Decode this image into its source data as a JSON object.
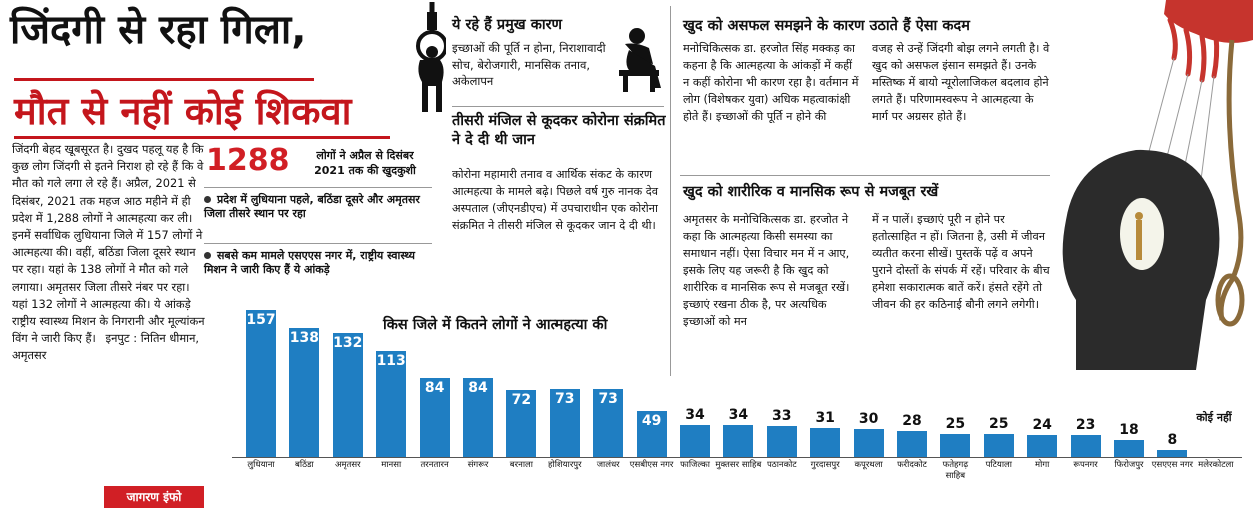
{
  "headline": {
    "line1": "जिंदगी से रहा गिला,",
    "line2": "मौत से नहीं कोई शिकवा"
  },
  "intro": "जिंदगी बेहद खूबसूरत है। दुखद पहलू यह है कि कुछ लोग जिंदगी से इतने निराश हो रहे हैं कि वे मौत को गले लगा ले रहे हैं। अप्रैल, 2021 से दिसंबर, 2021 तक महज आठ महीने में ही प्रदेश में 1,288 लोगों ने आत्महत्या कर ली। इनमें सर्वाधिक लुधियाना जिले में 157 लोगों ने आत्महत्या की। वहीं, बठिंडा जिला दूसरे स्थान पर रहा। यहां के 138 लोगों ने मौत को गले लगाया। अमृतसर जिला तीसरे नंबर पर रहा। यहां 132 लोगों ने आत्महत्या की। ये आंकड़े राष्ट्रीय स्वास्थ्य मिशन के निगरानी और मूल्यांकन विंग ने जारी किए हैं।",
  "input_credit": "इनपुट : नितिन धीमान, अमृतसर",
  "stat": {
    "number": "1288",
    "note": "लोगों ने अप्रैल से दिसंबर 2021 तक की खुदकुशी"
  },
  "bullets": [
    "प्रदेश में लुधियाना पहले, बठिंडा दूसरे और अमृतसर जिला तीसरे स्थान पर रहा",
    "सबसे कम मामले एसएएस नगर में, राष्ट्रीय स्वास्थ्य मिशन ने जारी किए हैं ये आंकड़े"
  ],
  "reasons": {
    "title": "ये रहे हैं प्रमुख कारण",
    "text": "इच्छाओं की पूर्ति न होना, निराशावादी सोच, बेरोजगारी, मानसिक तनाव, अकेलापन"
  },
  "third_floor": {
    "title": "तीसरी मंजिल से कूदकर कोरोना संक्रमित ने दे दी थी जान",
    "text": "कोरोना महामारी तनाव व आर्थिक संकट के कारण आत्महत्या के मामले बढ़े। पिछले वर्ष गुरु नानक देव अस्पताल (जीएनडीएच) में उपचाराधीन एक कोरोना संक्रमित ने तीसरी मंजिल से कूदकर जान दे दी थी।"
  },
  "failure": {
    "title": "खुद को असफल समझने के कारण उठाते हैं ऐसा कदम",
    "col1": "मनोचिकित्सक डा. हरजोत सिंह मक्कड़ का कहना है कि आत्महत्या के आंकड़ों में कहीं न कहीं कोरोना भी कारण रहा है। वर्तमान में लोग (विशेषकर युवा) अधिक महत्वाकांक्षी होते हैं। इच्छाओं की पूर्ति न होने की",
    "col2": "वजह से उन्हें जिंदगी बोझ लगने लगती है। वे खुद को असफल इंसान समझते हैं। उनके मस्तिष्क में बायो न्यूरोलाजिकल बदलाव होने लगते हैं। परिणामस्वरूप ने आत्महत्या के मार्ग पर अग्रसर होते हैं।"
  },
  "strong": {
    "title": "खुद को शारीरिक व मानसिक रूप से मजबूत रखें",
    "col1": "अमृतसर के मनोचिकित्सक डा. हरजोत ने कहा कि आत्महत्या किसी समस्या का समाधान नहीं। ऐसा विचार मन में न आए, इसके लिए यह जरूरी है कि खुद को शारीरिक व मानसिक रूप से मजबूत रखें। इच्छाएं रखना ठीक है, पर अत्यधिक इच्छाओं को मन",
    "col2": "में न पालें। इच्छाएं पूरी न होने पर हतोत्साहित न हों। जितना है, उसी में जीवन व्यतीत करना सीखें। पुस्तकें पढ़ें व अपने पुराने दोस्तों के संपर्क में रहें। परिवार के बीच हमेशा सकारात्मक बातें करें। हंसते रहेंगे तो जीवन की हर कठिनाई बौनी लगने लगेगी।"
  },
  "credit": "जागरण इंफो",
  "colors": {
    "bar": "#1f7ec2",
    "accent": "#d11f25"
  },
  "chart_data": {
    "type": "bar",
    "title": "किस जिले में कितने लोगों ने आत्महत्या की",
    "categories": [
      "लुधियाना",
      "बठिंडा",
      "अमृतसर",
      "मानसा",
      "तरनतारन",
      "संगरूर",
      "बरनाला",
      "होशियारपुर",
      "जालंधर",
      "एसबीएस नगर",
      "फाजिल्का",
      "मुक्तसर साहिब",
      "पठानकोट",
      "गुरदासपुर",
      "कपूरथला",
      "फरीदकोट",
      "फतेहगढ़ साहिब",
      "पटियाला",
      "मोगा",
      "रूपनगर",
      "फिरोजपुर",
      "एसएएस नगर",
      "मलेरकोटला"
    ],
    "values": [
      157,
      138,
      132,
      113,
      84,
      84,
      72,
      73,
      73,
      49,
      34,
      34,
      33,
      31,
      30,
      28,
      25,
      25,
      24,
      23,
      18,
      8,
      null
    ],
    "value_labels": [
      "157",
      "138",
      "132",
      "113",
      "84",
      "84",
      "72",
      "73",
      "73",
      "49",
      "34",
      "34",
      "33",
      "31",
      "30",
      "28",
      "25",
      "25",
      "24",
      "23",
      "18",
      "8",
      "कोई नहीं"
    ],
    "ylim": [
      0,
      160
    ]
  }
}
